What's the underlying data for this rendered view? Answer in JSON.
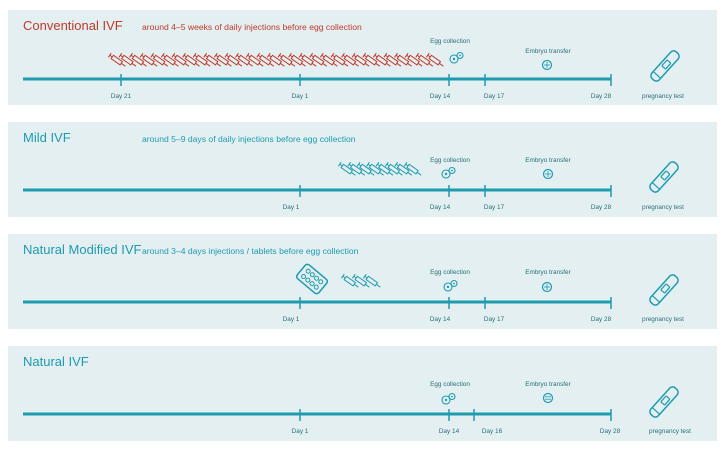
{
  "colors": {
    "panel_bg": "#e3eff1",
    "teal": "#1f9bb0",
    "dark_teal": "#2a6f7a",
    "conventional_red": "#c0392b"
  },
  "panels": [
    {
      "title": "Conventional IVF",
      "subtitle": "around 4–5 weeks of daily injections before egg collection",
      "accent": "red",
      "ticks": [
        "Day 21",
        "Day 1",
        "Day 14",
        "Day 17",
        "Day 28"
      ],
      "egg_collection": "Egg collection",
      "embryo_transfer": "Embryo transfer",
      "end_label": "pregnancy test",
      "icons": [
        "syringe-icon x31",
        "egg-icon",
        "embryo-icon",
        "pregnancy-test-icon"
      ]
    },
    {
      "title": "Mild IVF",
      "subtitle": "around 5–9 days of daily injections before egg collection",
      "accent": "teal",
      "ticks": [
        "Day 1",
        "Day 14",
        "Day 17",
        "Day 28"
      ],
      "egg_collection": "Egg collection",
      "embryo_transfer": "Embryo transfer",
      "end_label": "pregnancy test",
      "icons": [
        "syringe-icon x8",
        "egg-icon",
        "embryo-icon",
        "pregnancy-test-icon"
      ]
    },
    {
      "title": "Natural Modified IVF",
      "subtitle": "around 3–4 days injections / tablets before egg collection",
      "accent": "teal",
      "ticks": [
        "Day 1",
        "Day 14",
        "Day 17",
        "Day 28"
      ],
      "egg_collection": "Egg collection",
      "embryo_transfer": "Embryo transfer",
      "end_label": "pregnancy test",
      "icons": [
        "tablet-pack-icon",
        "syringe-icon x3",
        "egg-icon",
        "embryo-icon",
        "pregnancy-test-icon"
      ]
    },
    {
      "title": "Natural IVF",
      "subtitle": "",
      "accent": "teal",
      "ticks": [
        "Day 1",
        "Day 14",
        "Day 16",
        "Day 28"
      ],
      "egg_collection": "Egg collection",
      "embryo_transfer": "Embryo transfer",
      "end_label": "pregnancy test",
      "icons": [
        "egg-icon",
        "embryo-icon",
        "pregnancy-test-icon"
      ]
    }
  ]
}
